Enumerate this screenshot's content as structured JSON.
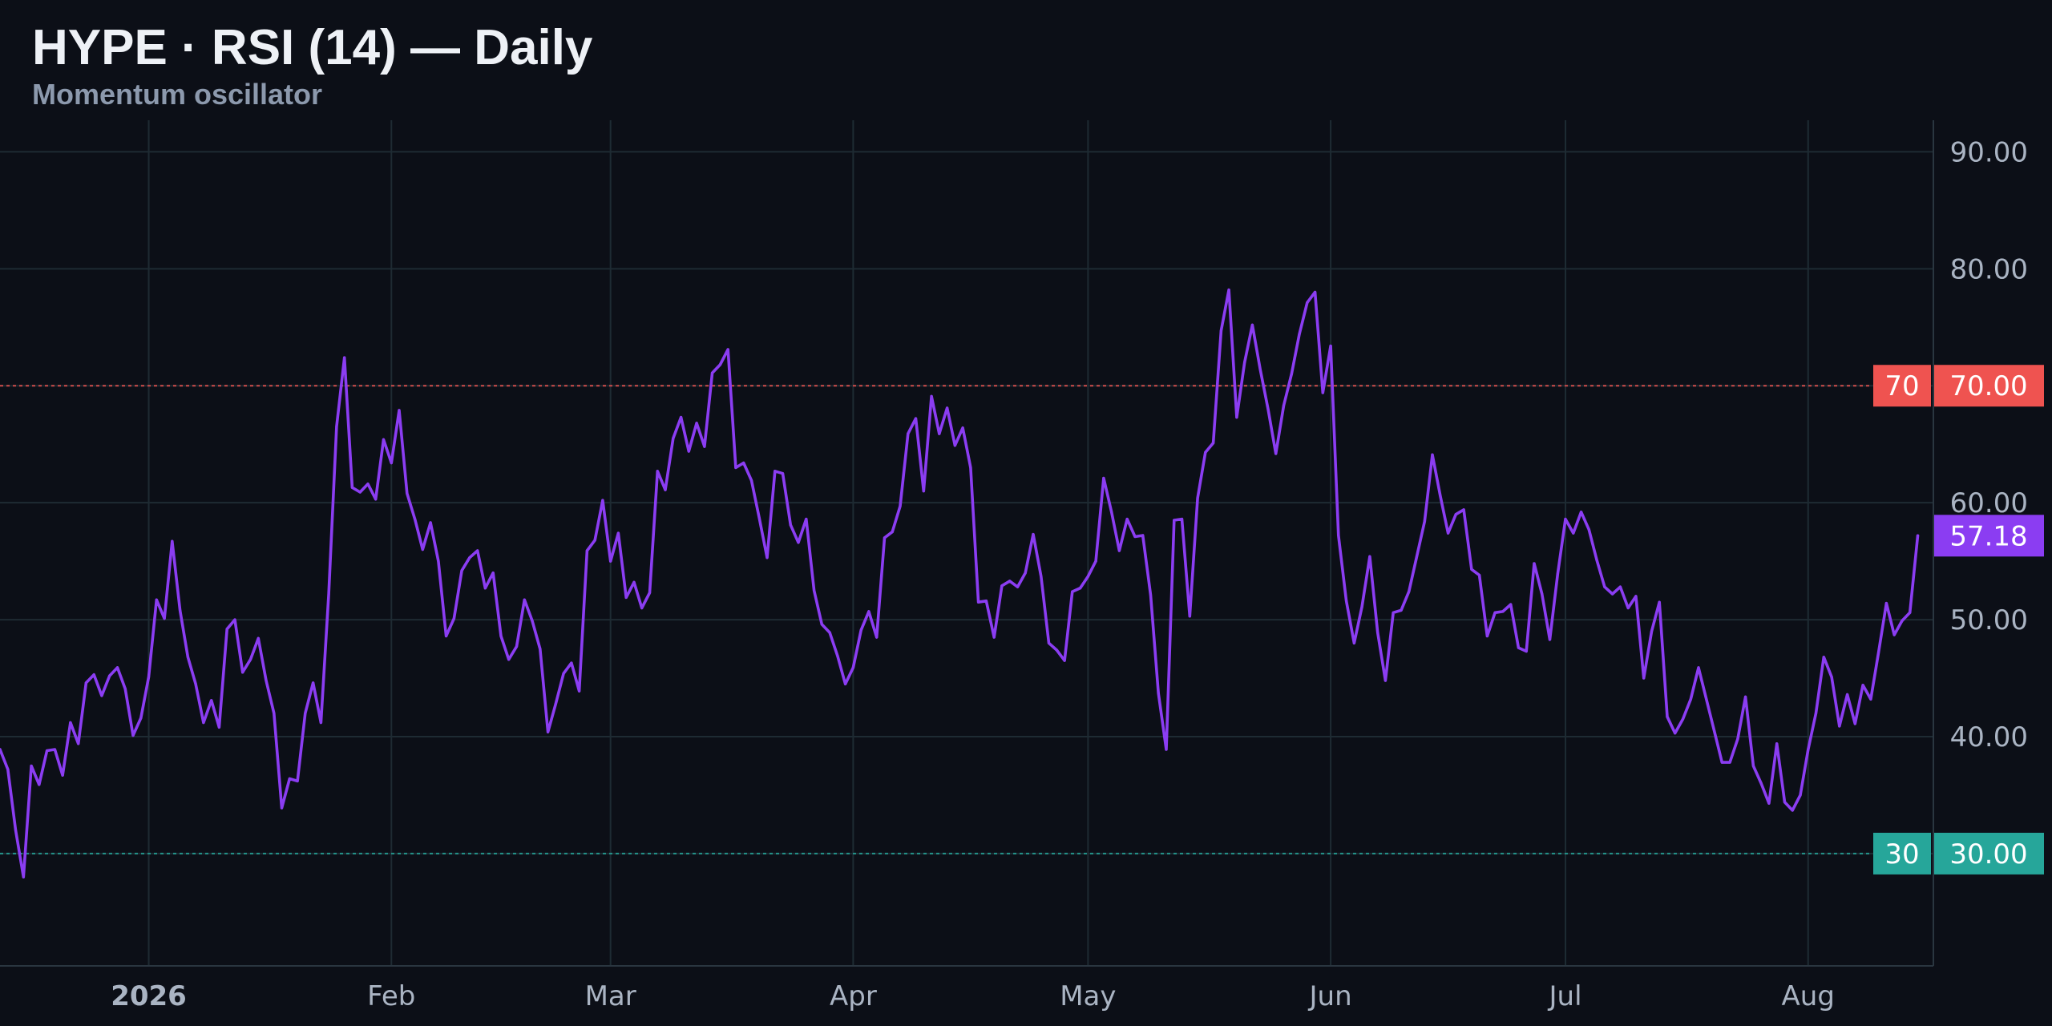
{
  "header": {
    "title": "HYPE · RSI (14) — Daily",
    "subtitle": "Momentum oscillator"
  },
  "colors": {
    "background": "#0c0f17",
    "grid": "#1e2b33",
    "line": "#8b3df2",
    "overbought": "#ef5350",
    "oversold": "#26a69a",
    "axis_text": "#aab4c3"
  },
  "chart_data": {
    "type": "line",
    "title": "HYPE · RSI (14) — Daily",
    "subtitle": "Momentum oscillator",
    "y_ticks": [
      "90.00",
      "80.00",
      "70.00",
      "60.00",
      "50.00",
      "40.00",
      "30.00"
    ],
    "ylim": [
      20.4,
      92.7
    ],
    "x_range": [
      "2025-12-13",
      "2026-08-17"
    ],
    "x_ticks": [
      {
        "date": "2026-01-01",
        "label": "2026",
        "bold": true
      },
      {
        "date": "2026-02-01",
        "label": "Feb"
      },
      {
        "date": "2026-03-01",
        "label": "Mar"
      },
      {
        "date": "2026-04-01",
        "label": "Apr"
      },
      {
        "date": "2026-05-01",
        "label": "May"
      },
      {
        "date": "2026-06-01",
        "label": "Jun"
      },
      {
        "date": "2026-07-01",
        "label": "Jul"
      },
      {
        "date": "2026-08-01",
        "label": "Aug"
      }
    ],
    "levels": [
      {
        "value": 70,
        "label": "70",
        "axis_label": "70.00",
        "color": "#ef5350"
      },
      {
        "value": 30,
        "label": "30",
        "axis_label": "30.00",
        "color": "#26a69a"
      }
    ],
    "last": {
      "value": 57.18,
      "label": "57.18",
      "color": "#8b3df2"
    },
    "grid": true,
    "series": [
      {
        "color": "#8b3df2",
        "points": [
          [
            "2025-12-13",
            38.9
          ],
          [
            "2025-12-14",
            37.2
          ],
          [
            "2025-12-15",
            32.0
          ],
          [
            "2025-12-16",
            28.0
          ],
          [
            "2025-12-17",
            37.5
          ],
          [
            "2025-12-18",
            35.9
          ],
          [
            "2025-12-19",
            38.8
          ],
          [
            "2025-12-20",
            38.9
          ],
          [
            "2025-12-21",
            36.7
          ],
          [
            "2025-12-22",
            41.2
          ],
          [
            "2025-12-23",
            39.4
          ],
          [
            "2025-12-24",
            44.6
          ],
          [
            "2025-12-25",
            45.3
          ],
          [
            "2025-12-26",
            43.5
          ],
          [
            "2025-12-27",
            45.2
          ],
          [
            "2025-12-28",
            45.9
          ],
          [
            "2025-12-29",
            44.1
          ],
          [
            "2025-12-30",
            40.1
          ],
          [
            "2025-12-31",
            41.6
          ],
          [
            "2026-01-01",
            45.1
          ],
          [
            "2026-01-02",
            51.7
          ],
          [
            "2026-01-03",
            50.1
          ],
          [
            "2026-01-04",
            56.7
          ],
          [
            "2026-01-05",
            50.8
          ],
          [
            "2026-01-06",
            46.8
          ],
          [
            "2026-01-07",
            44.5
          ],
          [
            "2026-01-08",
            41.2
          ],
          [
            "2026-01-09",
            43.1
          ],
          [
            "2026-01-10",
            40.8
          ],
          [
            "2026-01-11",
            49.2
          ],
          [
            "2026-01-12",
            50.0
          ],
          [
            "2026-01-13",
            45.5
          ],
          [
            "2026-01-14",
            46.6
          ],
          [
            "2026-01-15",
            48.4
          ],
          [
            "2026-01-16",
            44.8
          ],
          [
            "2026-01-17",
            42.0
          ],
          [
            "2026-01-18",
            33.9
          ],
          [
            "2026-01-19",
            36.4
          ],
          [
            "2026-01-20",
            36.2
          ],
          [
            "2026-01-21",
            42.0
          ],
          [
            "2026-01-22",
            44.6
          ],
          [
            "2026-01-23",
            41.2
          ],
          [
            "2026-01-24",
            52.2
          ],
          [
            "2026-01-25",
            66.5
          ],
          [
            "2026-01-26",
            72.4
          ],
          [
            "2026-01-27",
            61.3
          ],
          [
            "2026-01-28",
            60.9
          ],
          [
            "2026-01-29",
            61.6
          ],
          [
            "2026-01-30",
            60.3
          ],
          [
            "2026-01-31",
            65.4
          ],
          [
            "2026-02-01",
            63.4
          ],
          [
            "2026-02-02",
            67.9
          ],
          [
            "2026-02-03",
            60.8
          ],
          [
            "2026-02-04",
            58.6
          ],
          [
            "2026-02-05",
            56.0
          ],
          [
            "2026-02-06",
            58.3
          ],
          [
            "2026-02-07",
            55.0
          ],
          [
            "2026-02-08",
            48.6
          ],
          [
            "2026-02-09",
            50.1
          ],
          [
            "2026-02-10",
            54.2
          ],
          [
            "2026-02-11",
            55.3
          ],
          [
            "2026-02-12",
            55.9
          ],
          [
            "2026-02-13",
            52.7
          ],
          [
            "2026-02-14",
            54.0
          ],
          [
            "2026-02-15",
            48.6
          ],
          [
            "2026-02-16",
            46.6
          ],
          [
            "2026-02-17",
            47.7
          ],
          [
            "2026-02-18",
            51.7
          ],
          [
            "2026-02-19",
            49.9
          ],
          [
            "2026-02-20",
            47.5
          ],
          [
            "2026-02-21",
            40.4
          ],
          [
            "2026-02-22",
            42.8
          ],
          [
            "2026-02-23",
            45.4
          ],
          [
            "2026-02-24",
            46.3
          ],
          [
            "2026-02-25",
            43.9
          ],
          [
            "2026-02-26",
            55.9
          ],
          [
            "2026-02-27",
            56.8
          ],
          [
            "2026-02-28",
            60.2
          ],
          [
            "2026-03-01",
            55.0
          ],
          [
            "2026-03-02",
            57.4
          ],
          [
            "2026-03-03",
            51.9
          ],
          [
            "2026-03-04",
            53.2
          ],
          [
            "2026-03-05",
            51.0
          ],
          [
            "2026-03-06",
            52.3
          ],
          [
            "2026-03-07",
            62.7
          ],
          [
            "2026-03-08",
            61.1
          ],
          [
            "2026-03-09",
            65.5
          ],
          [
            "2026-03-10",
            67.3
          ],
          [
            "2026-03-11",
            64.4
          ],
          [
            "2026-03-12",
            66.8
          ],
          [
            "2026-03-13",
            64.8
          ],
          [
            "2026-03-14",
            71.1
          ],
          [
            "2026-03-15",
            71.8
          ],
          [
            "2026-03-16",
            73.1
          ],
          [
            "2026-03-17",
            63.0
          ],
          [
            "2026-03-18",
            63.4
          ],
          [
            "2026-03-19",
            61.9
          ],
          [
            "2026-03-20",
            58.7
          ],
          [
            "2026-03-21",
            55.3
          ],
          [
            "2026-03-22",
            62.7
          ],
          [
            "2026-03-23",
            62.5
          ],
          [
            "2026-03-24",
            58.1
          ],
          [
            "2026-03-25",
            56.6
          ],
          [
            "2026-03-26",
            58.6
          ],
          [
            "2026-03-27",
            52.5
          ],
          [
            "2026-03-28",
            49.6
          ],
          [
            "2026-03-29",
            48.9
          ],
          [
            "2026-03-30",
            46.9
          ],
          [
            "2026-03-31",
            44.5
          ],
          [
            "2026-04-01",
            45.9
          ],
          [
            "2026-04-02",
            49.1
          ],
          [
            "2026-04-03",
            50.7
          ],
          [
            "2026-04-04",
            48.5
          ],
          [
            "2026-04-05",
            57.0
          ],
          [
            "2026-04-06",
            57.5
          ],
          [
            "2026-04-07",
            59.7
          ],
          [
            "2026-04-08",
            65.9
          ],
          [
            "2026-04-09",
            67.2
          ],
          [
            "2026-04-10",
            61.0
          ],
          [
            "2026-04-11",
            69.1
          ],
          [
            "2026-04-12",
            65.9
          ],
          [
            "2026-04-13",
            68.1
          ],
          [
            "2026-04-14",
            64.9
          ],
          [
            "2026-04-15",
            66.4
          ],
          [
            "2026-04-16",
            63.0
          ],
          [
            "2026-04-17",
            51.5
          ],
          [
            "2026-04-18",
            51.6
          ],
          [
            "2026-04-19",
            48.5
          ],
          [
            "2026-04-20",
            52.9
          ],
          [
            "2026-04-21",
            53.3
          ],
          [
            "2026-04-22",
            52.8
          ],
          [
            "2026-04-23",
            54.0
          ],
          [
            "2026-04-24",
            57.3
          ],
          [
            "2026-04-25",
            53.7
          ],
          [
            "2026-04-26",
            48.0
          ],
          [
            "2026-04-27",
            47.4
          ],
          [
            "2026-04-28",
            46.5
          ],
          [
            "2026-04-29",
            52.4
          ],
          [
            "2026-04-30",
            52.7
          ],
          [
            "2026-05-01",
            53.7
          ],
          [
            "2026-05-02",
            55.0
          ],
          [
            "2026-05-03",
            62.1
          ],
          [
            "2026-05-04",
            59.2
          ],
          [
            "2026-05-05",
            55.9
          ],
          [
            "2026-05-06",
            58.6
          ],
          [
            "2026-05-07",
            57.1
          ],
          [
            "2026-05-08",
            57.2
          ],
          [
            "2026-05-09",
            52.1
          ],
          [
            "2026-05-10",
            43.7
          ],
          [
            "2026-05-11",
            38.9
          ],
          [
            "2026-05-12",
            58.5
          ],
          [
            "2026-05-13",
            58.6
          ],
          [
            "2026-05-14",
            50.3
          ],
          [
            "2026-05-15",
            60.4
          ],
          [
            "2026-05-16",
            64.3
          ],
          [
            "2026-05-17",
            65.1
          ],
          [
            "2026-05-18",
            74.7
          ],
          [
            "2026-05-19",
            78.2
          ],
          [
            "2026-05-20",
            67.3
          ],
          [
            "2026-05-21",
            72.0
          ],
          [
            "2026-05-22",
            75.2
          ],
          [
            "2026-05-23",
            71.4
          ],
          [
            "2026-05-24",
            68.0
          ],
          [
            "2026-05-25",
            64.2
          ],
          [
            "2026-05-26",
            68.3
          ],
          [
            "2026-05-27",
            71.0
          ],
          [
            "2026-05-28",
            74.4
          ],
          [
            "2026-05-29",
            77.1
          ],
          [
            "2026-05-30",
            78.0
          ],
          [
            "2026-05-31",
            69.4
          ],
          [
            "2026-06-01",
            73.4
          ],
          [
            "2026-06-02",
            57.2
          ],
          [
            "2026-06-03",
            51.6
          ],
          [
            "2026-06-04",
            48.0
          ],
          [
            "2026-06-05",
            51.1
          ],
          [
            "2026-06-06",
            55.4
          ],
          [
            "2026-06-07",
            48.9
          ],
          [
            "2026-06-08",
            44.8
          ],
          [
            "2026-06-09",
            50.6
          ],
          [
            "2026-06-10",
            50.8
          ],
          [
            "2026-06-11",
            52.4
          ],
          [
            "2026-06-12",
            55.4
          ],
          [
            "2026-06-13",
            58.4
          ],
          [
            "2026-06-14",
            64.1
          ],
          [
            "2026-06-15",
            60.6
          ],
          [
            "2026-06-16",
            57.4
          ],
          [
            "2026-06-17",
            59.0
          ],
          [
            "2026-06-18",
            59.4
          ],
          [
            "2026-06-19",
            54.3
          ],
          [
            "2026-06-20",
            53.8
          ],
          [
            "2026-06-21",
            48.6
          ],
          [
            "2026-06-22",
            50.6
          ],
          [
            "2026-06-23",
            50.7
          ],
          [
            "2026-06-24",
            51.3
          ],
          [
            "2026-06-25",
            47.6
          ],
          [
            "2026-06-26",
            47.3
          ],
          [
            "2026-06-27",
            54.8
          ],
          [
            "2026-06-28",
            52.2
          ],
          [
            "2026-06-29",
            48.3
          ],
          [
            "2026-06-30",
            53.9
          ],
          [
            "2026-07-01",
            58.6
          ],
          [
            "2026-07-02",
            57.4
          ],
          [
            "2026-07-03",
            59.2
          ],
          [
            "2026-07-04",
            57.7
          ],
          [
            "2026-07-05",
            55.1
          ],
          [
            "2026-07-06",
            52.8
          ],
          [
            "2026-07-07",
            52.2
          ],
          [
            "2026-07-08",
            52.8
          ],
          [
            "2026-07-09",
            51.0
          ],
          [
            "2026-07-10",
            52.0
          ],
          [
            "2026-07-11",
            45.0
          ],
          [
            "2026-07-12",
            49.0
          ],
          [
            "2026-07-13",
            51.5
          ],
          [
            "2026-07-14",
            41.7
          ],
          [
            "2026-07-15",
            40.3
          ],
          [
            "2026-07-16",
            41.5
          ],
          [
            "2026-07-17",
            43.2
          ],
          [
            "2026-07-18",
            45.9
          ],
          [
            "2026-07-19",
            43.2
          ],
          [
            "2026-07-20",
            40.5
          ],
          [
            "2026-07-21",
            37.8
          ],
          [
            "2026-07-22",
            37.8
          ],
          [
            "2026-07-23",
            39.8
          ],
          [
            "2026-07-24",
            43.4
          ],
          [
            "2026-07-25",
            37.5
          ],
          [
            "2026-07-26",
            36.0
          ],
          [
            "2026-07-27",
            34.3
          ],
          [
            "2026-07-28",
            39.4
          ],
          [
            "2026-07-29",
            34.4
          ],
          [
            "2026-07-30",
            33.7
          ],
          [
            "2026-07-31",
            35.0
          ],
          [
            "2026-08-01",
            38.9
          ],
          [
            "2026-08-02",
            42.0
          ],
          [
            "2026-08-03",
            46.8
          ],
          [
            "2026-08-04",
            45.1
          ],
          [
            "2026-08-05",
            40.9
          ],
          [
            "2026-08-06",
            43.6
          ],
          [
            "2026-08-07",
            41.1
          ],
          [
            "2026-08-08",
            44.4
          ],
          [
            "2026-08-09",
            43.2
          ],
          [
            "2026-08-10",
            47.2
          ],
          [
            "2026-08-11",
            51.4
          ],
          [
            "2026-08-12",
            48.7
          ],
          [
            "2026-08-13",
            49.9
          ],
          [
            "2026-08-14",
            50.6
          ],
          [
            "2026-08-15",
            57.18
          ]
        ]
      }
    ]
  }
}
